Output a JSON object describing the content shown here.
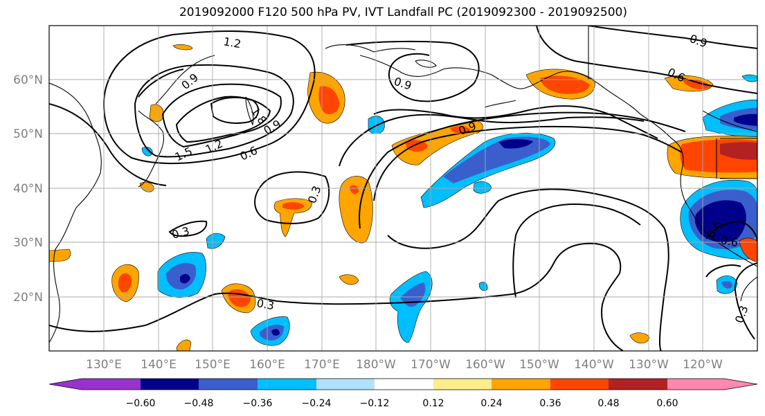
{
  "title": "2019092000 F120 500 hPa PV, IVT Landfall PC (2019092300 - 2019092500)",
  "lat_labels": [
    "60°N",
    "50°N",
    "40°N",
    "30°N",
    "20°N"
  ],
  "lon_labels": [
    "130°E",
    "140°E",
    "150°E",
    "160°E",
    "170°E",
    "180°W",
    "170°W",
    "160°W",
    "150°W",
    "140°W",
    "130°W",
    "120°W"
  ],
  "contour_labels": [
    "1.2",
    "0.9",
    "0.9",
    "0.9",
    "0.9",
    "1.5",
    "1.2",
    "0.6",
    "0.9",
    "0.3",
    "0.3",
    "0.3",
    "0.6",
    "0.6",
    "0.6",
    "0.3",
    "1.8"
  ],
  "colorbar": {
    "ticks": [
      "−0.60",
      "−0.48",
      "−0.36",
      "−0.24",
      "−0.12",
      "0.12",
      "0.24",
      "0.36",
      "0.48",
      "0.60"
    ],
    "colors": [
      "#9932cc",
      "#00008b",
      "#3a5fcd",
      "#00bfff",
      "#b0e2ff",
      "#ffffff",
      "#ffec8b",
      "#ffa500",
      "#ff4500",
      "#b22222",
      "#ff88b0"
    ]
  }
}
